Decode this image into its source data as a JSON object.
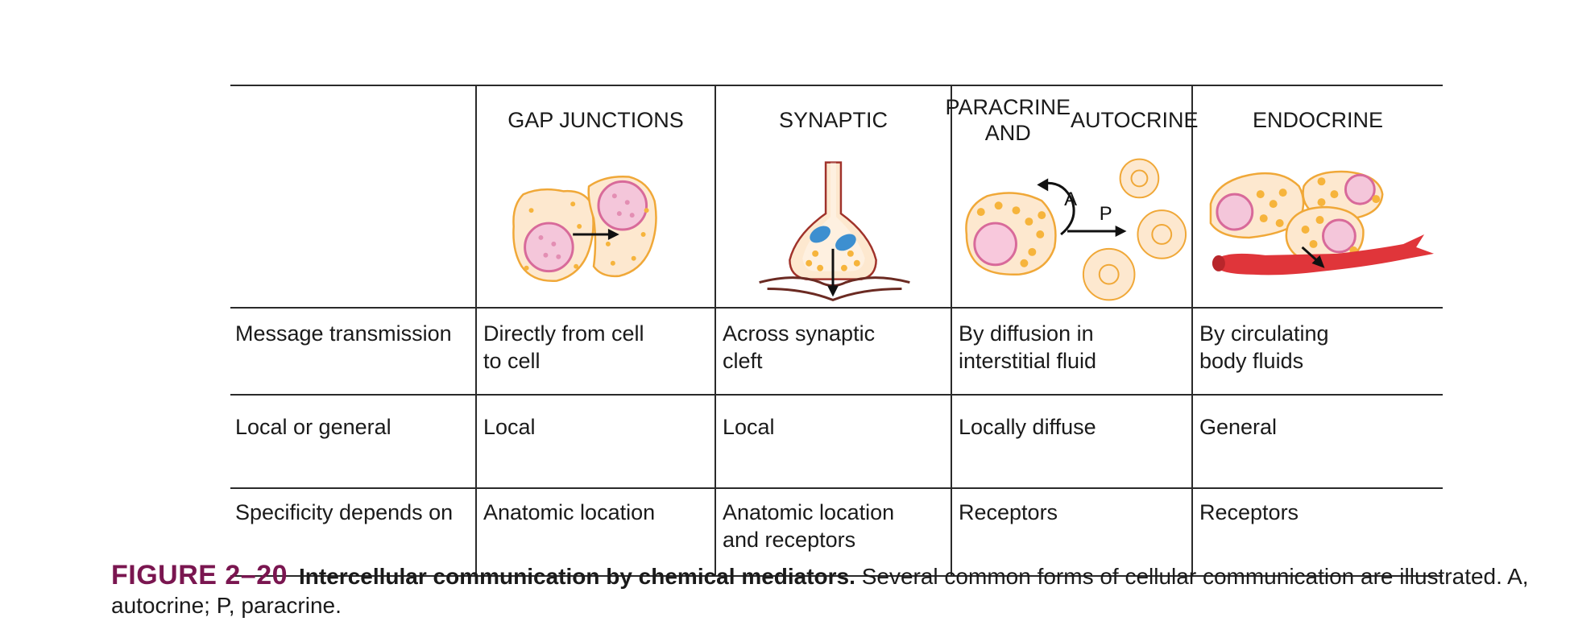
{
  "table": {
    "columns": [
      "GAP JUNCTIONS",
      "SYNAPTIC",
      "PARACRINE AND\nAUTOCRINE",
      "ENDOCRINE"
    ],
    "column_lines": [
      [
        "GAP JUNCTIONS"
      ],
      [
        "SYNAPTIC"
      ],
      [
        "PARACRINE AND",
        "AUTOCRINE"
      ],
      [
        "ENDOCRINE"
      ]
    ],
    "rows": [
      {
        "label": "Message transmission",
        "cells": [
          [
            "Directly from cell",
            "to cell"
          ],
          [
            "Across synaptic",
            "cleft"
          ],
          [
            "By diffusion in",
            "interstitial fluid"
          ],
          [
            "By circulating",
            "body fluids"
          ]
        ]
      },
      {
        "label": "Local or general",
        "cells": [
          [
            "Local"
          ],
          [
            "Local"
          ],
          [
            "Locally diffuse"
          ],
          [
            "General"
          ]
        ]
      },
      {
        "label": "Specificity depends on",
        "cells": [
          [
            "Anatomic location"
          ],
          [
            "Anatomic location",
            "and receptors"
          ],
          [
            "Receptors"
          ],
          [
            "Receptors"
          ]
        ]
      }
    ],
    "illustration_labels": {
      "autocrine": "A",
      "paracrine": "P"
    }
  },
  "caption": {
    "figure_label": "FIGURE 2–20",
    "title": "Intercellular communication by chemical mediators.",
    "text": " Several common forms of cellular communication are illustrated. A, autocrine; P, paracrine."
  },
  "colors": {
    "cell_fill": "#fde8cf",
    "cell_outline": "#f0a838",
    "granule": "#f6b43c",
    "nucleus": "#d86a9a",
    "nucleus_fill": "#f4c6da",
    "vessel": "#e0353a",
    "mitochondria": "#3d8fd0",
    "caption_accent": "#7a1650"
  }
}
